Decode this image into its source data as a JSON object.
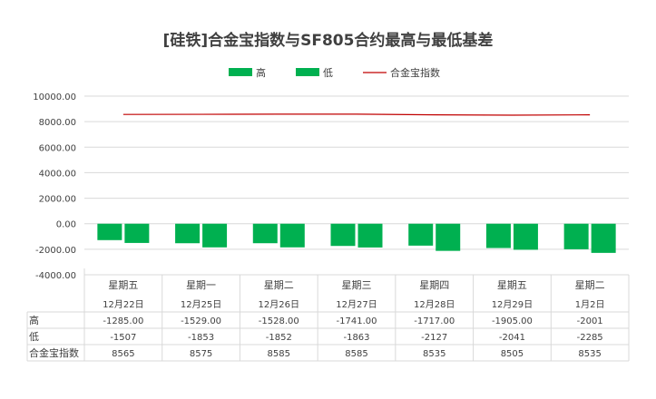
{
  "chart_data": {
    "type": "bar",
    "title": "[硅铁]合金宝指数与SF805合约最高与最低基差",
    "categories": [
      {
        "day": "星期五",
        "date": "12月22日"
      },
      {
        "day": "星期一",
        "date": "12月25日"
      },
      {
        "day": "星期二",
        "date": "12月26日"
      },
      {
        "day": "星期三",
        "date": "12月27日"
      },
      {
        "day": "星期四",
        "date": "12月28日"
      },
      {
        "day": "星期五",
        "date": "12月29日"
      },
      {
        "day": "星期二",
        "date": "1月2日"
      }
    ],
    "series": [
      {
        "name": "高",
        "kind": "bar",
        "color": "#00b050",
        "values": [
          -1285,
          -1529,
          -1528,
          -1741,
          -1717,
          -1905,
          -2001
        ],
        "labels": [
          "-1285.00",
          "-1529.00",
          "-1528.00",
          "-1741.00",
          "-1717.00",
          "-1905.00",
          "-2001"
        ]
      },
      {
        "name": "低",
        "kind": "bar",
        "color": "#00b050",
        "values": [
          -1507,
          -1853,
          -1852,
          -1863,
          -2127,
          -2041,
          -2285
        ],
        "labels": [
          "-1507",
          "-1853",
          "-1852",
          "-1863",
          "-2127",
          "-2041",
          "-2285"
        ]
      },
      {
        "name": "合金宝指数",
        "kind": "line",
        "color": "#c00000",
        "values": [
          8565,
          8575,
          8585,
          8585,
          8535,
          8505,
          8535
        ],
        "labels": [
          "8565",
          "8575",
          "8585",
          "8585",
          "8535",
          "8505",
          "8535"
        ]
      }
    ],
    "ylim": [
      -4000,
      10000
    ],
    "yticks": [
      "10000.00",
      "8000.00",
      "6000.00",
      "4000.00",
      "2000.00",
      "0.00",
      "-2000.00",
      "-4000.00"
    ],
    "ytick_values": [
      10000,
      8000,
      6000,
      4000,
      2000,
      0,
      -2000,
      -4000
    ],
    "grid": true,
    "legend_position": "top",
    "data_table": true
  }
}
